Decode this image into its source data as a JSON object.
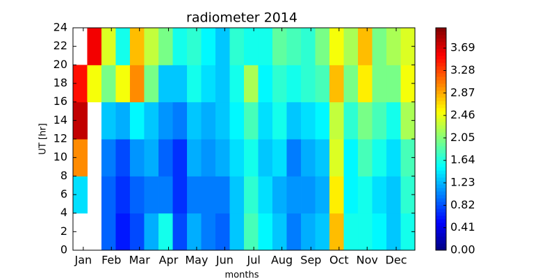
{
  "chart_data": {
    "type": "heatmap",
    "title": "radiometer 2014",
    "xlabel": "months",
    "ylabel": "UT [hr]",
    "colormap": "jet",
    "xlim": [
      0,
      365
    ],
    "ylim": [
      0,
      24
    ],
    "xticks": [
      {
        "value": 11,
        "label": "Jan"
      },
      {
        "value": 41,
        "label": "Feb"
      },
      {
        "value": 71,
        "label": "Mar"
      },
      {
        "value": 102,
        "label": "Apr"
      },
      {
        "value": 132,
        "label": "May"
      },
      {
        "value": 162,
        "label": "Jun"
      },
      {
        "value": 193,
        "label": "Jul"
      },
      {
        "value": 223,
        "label": "Aug"
      },
      {
        "value": 254,
        "label": "Sep"
      },
      {
        "value": 284,
        "label": "Oct"
      },
      {
        "value": 314,
        "label": "Nov"
      },
      {
        "value": 345,
        "label": "Dec"
      }
    ],
    "yticks": [
      0,
      2,
      4,
      6,
      8,
      10,
      12,
      14,
      16,
      18,
      20,
      22,
      24
    ],
    "clim": [
      0,
      4.06
    ],
    "cticks": [
      {
        "value": 0,
        "label": "0.00"
      },
      {
        "value": 0.41,
        "label": "0.41"
      },
      {
        "value": 0.82,
        "label": "0.82"
      },
      {
        "value": 1.23,
        "label": "1.23"
      },
      {
        "value": 1.64,
        "label": "1.64"
      },
      {
        "value": 2.05,
        "label": "2.05"
      },
      {
        "value": 2.46,
        "label": "2.46"
      },
      {
        "value": 2.87,
        "label": "2.87"
      },
      {
        "value": 3.28,
        "label": "3.28"
      },
      {
        "value": 3.69,
        "label": "3.69"
      }
    ],
    "x": [
      7.6,
      22.8,
      38.0,
      53.2,
      68.4,
      83.6,
      98.9,
      114.1,
      129.3,
      144.5,
      159.7,
      174.9,
      190.1,
      205.3,
      220.5,
      235.7,
      251.0,
      266.2,
      281.4,
      296.6,
      311.8,
      327.0,
      342.2,
      357.4
    ],
    "y": [
      2,
      6,
      10,
      14,
      18,
      22
    ],
    "values": [
      [
        null,
        1.4,
        3.0,
        3.8,
        3.5,
        null
      ],
      [
        null,
        null,
        null,
        null,
        2.5,
        3.6
      ],
      [
        0.9,
        0.9,
        1.0,
        1.3,
        2.0,
        2.4
      ],
      [
        0.6,
        0.7,
        0.8,
        1.2,
        2.5,
        1.6
      ],
      [
        0.8,
        0.9,
        1.1,
        1.5,
        3.0,
        2.8
      ],
      [
        1.2,
        1.0,
        1.2,
        1.3,
        2.0,
        2.3
      ],
      [
        1.6,
        1.0,
        0.9,
        1.1,
        1.3,
        2.0
      ],
      [
        0.8,
        0.7,
        0.7,
        1.0,
        1.3,
        1.6
      ],
      [
        1.2,
        1.0,
        1.2,
        1.3,
        1.6,
        1.7
      ],
      [
        1.0,
        1.0,
        1.1,
        1.2,
        1.4,
        1.5
      ],
      [
        0.9,
        1.0,
        1.2,
        1.3,
        1.3,
        1.3
      ],
      [
        1.3,
        1.3,
        1.4,
        1.5,
        1.6,
        1.7
      ],
      [
        1.8,
        1.7,
        1.6,
        1.8,
        2.2,
        1.6
      ],
      [
        1.5,
        1.4,
        1.3,
        1.4,
        1.5,
        1.6
      ],
      [
        1.3,
        1.2,
        1.4,
        1.6,
        1.7,
        1.9
      ],
      [
        1.0,
        1.1,
        1.0,
        1.3,
        1.6,
        1.8
      ],
      [
        1.2,
        1.1,
        1.2,
        1.4,
        1.7,
        1.7
      ],
      [
        1.3,
        1.2,
        1.3,
        1.5,
        1.8,
        2.0
      ],
      [
        2.8,
        2.6,
        2.4,
        2.3,
        2.8,
        2.5
      ],
      [
        1.6,
        1.5,
        1.5,
        1.7,
        2.0,
        2.2
      ],
      [
        1.6,
        1.6,
        1.8,
        2.0,
        2.6,
        2.8
      ],
      [
        1.5,
        1.4,
        1.6,
        1.8,
        2.0,
        2.0
      ],
      [
        1.3,
        1.3,
        1.4,
        1.6,
        2.0,
        2.2
      ],
      [
        1.6,
        1.7,
        1.8,
        2.2,
        2.5,
        2.4
      ]
    ]
  }
}
